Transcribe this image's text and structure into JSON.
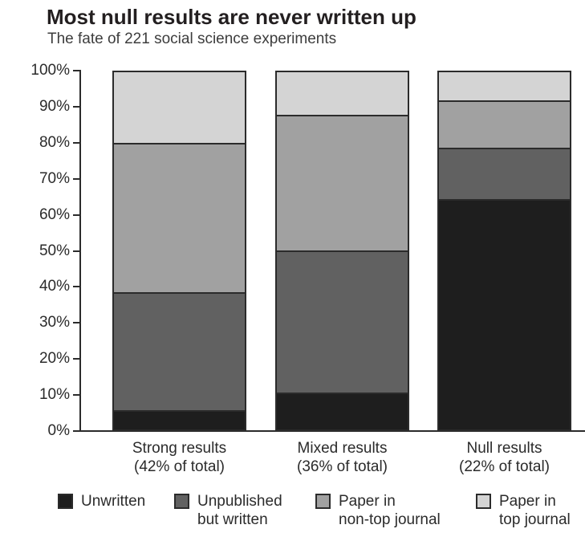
{
  "chart_data": {
    "type": "bar",
    "stacked": true,
    "title": "Most null results are never written up",
    "subtitle": "The fate of 221 social science experiments",
    "categories": [
      "Strong results",
      "Mixed results",
      "Null results"
    ],
    "category_sublabels": [
      "(42% of total)",
      "(36% of total)",
      "(22% of total)"
    ],
    "series": [
      {
        "name": "Unwritten",
        "color": "#1e1e1e",
        "values": [
          5,
          10,
          65
        ]
      },
      {
        "name": "Unpublished but written",
        "color": "#616161",
        "values": [
          33,
          40,
          14
        ]
      },
      {
        "name": "Paper in non-top journal",
        "color": "#a1a1a1",
        "values": [
          42,
          38,
          13
        ]
      },
      {
        "name": "Paper in top journal",
        "color": "#d4d4d4",
        "values": [
          20,
          12,
          8
        ]
      }
    ],
    "y_axis": {
      "min": 0,
      "max": 100,
      "tick_step": 10,
      "tick_labels": [
        "100%",
        "90%",
        "80%",
        "70%",
        "60%",
        "50%",
        "40%",
        "30%",
        "20%",
        "10%",
        "0%"
      ]
    },
    "legend": {
      "position": "bottom",
      "items": [
        {
          "lines": [
            "Unwritten"
          ],
          "color": "#1e1e1e"
        },
        {
          "lines": [
            "Unpublished",
            "but written"
          ],
          "color": "#616161"
        },
        {
          "lines": [
            "Paper in",
            "non-top journal"
          ],
          "color": "#a1a1a1"
        },
        {
          "lines": [
            "Paper in",
            "top journal"
          ],
          "color": "#d4d4d4"
        }
      ]
    },
    "grid": false,
    "axis_color": "#2b2b2b"
  }
}
